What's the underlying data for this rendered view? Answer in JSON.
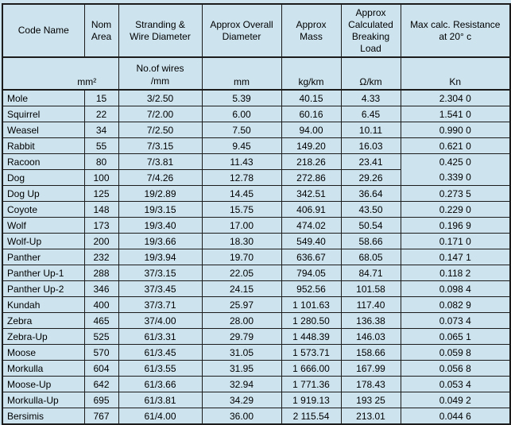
{
  "colors": {
    "background": "#cde4ef",
    "border": "#1c1c1c",
    "text": "#000000"
  },
  "table": {
    "headers": [
      {
        "id": "code-name",
        "lines": [
          "Code Name"
        ]
      },
      {
        "id": "nom-area",
        "lines": [
          "Nom",
          "Area"
        ]
      },
      {
        "id": "stranding",
        "lines": [
          "Stranding &",
          "Wire Diameter"
        ]
      },
      {
        "id": "overall-diameter",
        "lines": [
          "Approx Overall",
          "Diameter"
        ]
      },
      {
        "id": "mass",
        "lines": [
          "Approx",
          "Mass"
        ]
      },
      {
        "id": "breaking-load",
        "lines": [
          "Approx",
          "Calculated",
          "Breaking",
          "Load"
        ]
      },
      {
        "id": "resistance",
        "lines": [
          "Max calc. Resistance",
          "at 20° c"
        ]
      }
    ],
    "column_ids": [
      "code-name",
      "nom-area",
      "stranding",
      "overall-diameter",
      "mass",
      "breaking-load",
      "resistance"
    ],
    "units": {
      "area": "mm²",
      "stranding_line1": "No.of wires",
      "stranding_line2": "/mm",
      "diameter": "mm",
      "mass": "kg/km",
      "breaking_load": "Ω/km",
      "resistance": "Kn"
    },
    "rows": [
      [
        "Mole",
        "15",
        "3/2.50",
        "5.39",
        "40.15",
        "4.33",
        "2.304 0"
      ],
      [
        "Squirrel",
        "22",
        "7/2.00",
        "6.00",
        "60.16",
        "6.45",
        "1.541 0"
      ],
      [
        "Weasel",
        "34",
        "7/2.50",
        "7.50",
        "94.00",
        "10.11",
        "0.990 0"
      ],
      [
        "Rabbit",
        "55",
        "7/3.15",
        "9.45",
        "149.20",
        "16.03",
        "0.621 0"
      ],
      [
        "Racoon",
        "80",
        "7/3.81",
        "11.43",
        "218.26",
        "23.41",
        "0.425 0"
      ],
      [
        "Dog",
        "100",
        "7/4.26",
        "12.78",
        "272.86",
        "29.26",
        "0.339 0"
      ],
      [
        "Dog Up",
        "125",
        "19/2.89",
        "14.45",
        "342.51",
        "36.64",
        "0.273 5"
      ],
      [
        "Coyote",
        "148",
        "19/3.15",
        "15.75",
        "406.91",
        "43.50",
        "0.229 0"
      ],
      [
        "Wolf",
        "173",
        "19/3.40",
        "17.00",
        "474.02",
        "50.54",
        "0.196 9"
      ],
      [
        "Wolf-Up",
        "200",
        "19/3.66",
        "18.30",
        "549.40",
        "58.66",
        "0.171 0"
      ],
      [
        "Panther",
        "232",
        "19/3.94",
        "19.70",
        "636.67",
        "68.05",
        "0.147 1"
      ],
      [
        "Panther Up-1",
        "288",
        "37/3.15",
        "22.05",
        "794.05",
        "84.71",
        "0.118 2"
      ],
      [
        "Panther Up-2",
        "346",
        "37/3.45",
        "24.15",
        "952.56",
        "101.58",
        "0.098 4"
      ],
      [
        "Kundah",
        "400",
        "37/3.71",
        "25.97",
        "1 101.63",
        "117.40",
        "0.082 9"
      ],
      [
        "Zebra",
        "465",
        "37/4.00",
        "28.00",
        "1 280.50",
        "136.38",
        "0.073 4"
      ],
      [
        "Zebra-Up",
        "525",
        "61/3.31",
        "29.79",
        "1 448.39",
        "146.03",
        "0.065 1"
      ],
      [
        "Moose",
        "570",
        "61/3.45",
        "31.05",
        "1 573.71",
        "158.66",
        "0.059 8"
      ],
      [
        "Morkulla",
        "604",
        "61/3.55",
        "31.95",
        "1 666.00",
        "167.99",
        "0.056 8"
      ],
      [
        "Moose-Up",
        "642",
        "61/3.66",
        "32.94",
        "1 771.36",
        "178.43",
        "0.053 4"
      ],
      [
        "Morkulla-Up",
        "695",
        "61/3.81",
        "34.29",
        "1 919.13",
        "193 25",
        "0.049 2"
      ],
      [
        "Bersimis",
        "767",
        "61/4.00",
        "36.00",
        "2 115.54",
        "213.01",
        "0.044 6"
      ]
    ],
    "quirks": {
      "hidden_bottom_border": {
        "row": 4,
        "col": 6
      }
    }
  }
}
